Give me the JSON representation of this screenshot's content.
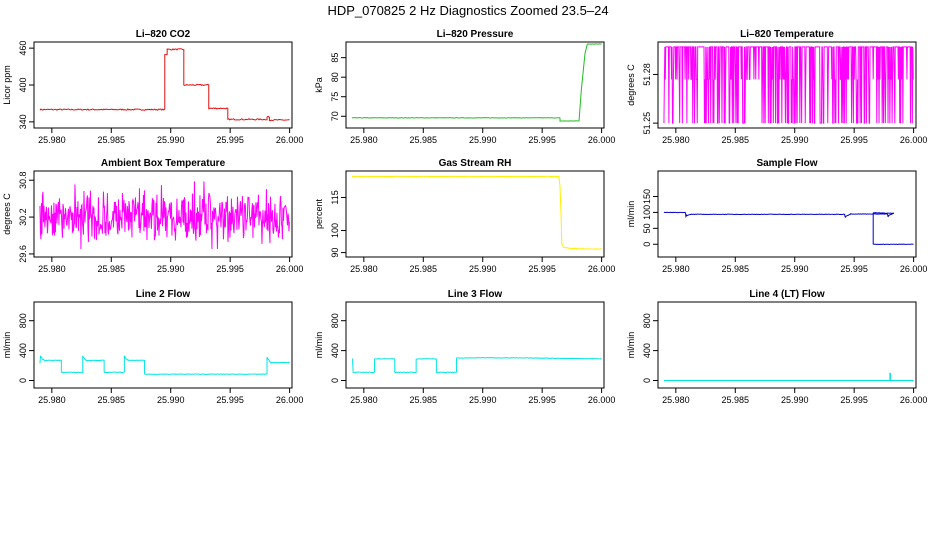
{
  "figure_title": "HDP_070825  2 Hz Diagnostics Zoomed 23.5–24",
  "chart_data": [
    {
      "type": "line",
      "title": "Li–820 CO2",
      "ylabel": "Licor ppm",
      "color": "#e01010",
      "xlim": [
        25.9785,
        26.0002
      ],
      "ylim": [
        330,
        470
      ],
      "xticks": [
        25.98,
        25.985,
        25.99,
        25.995,
        26.0
      ],
      "xtick_labels": [
        "25.980",
        "25.985",
        "25.990",
        "25.995",
        "26.000"
      ],
      "yticks": [
        340,
        400,
        460
      ],
      "ytick_labels": [
        "340",
        "400",
        "460"
      ],
      "noise": 1,
      "series": [
        {
          "name": "CO2",
          "x": [
            25.979,
            25.9895,
            25.9895,
            25.9897,
            25.9897,
            25.9911,
            25.9911,
            25.9932,
            25.9932,
            25.9948,
            25.9948,
            25.9981,
            25.9981,
            25.9983,
            25.9983,
            26.0
          ],
          "y": [
            360,
            360,
            450,
            450,
            458,
            458,
            400,
            400,
            362,
            362,
            344,
            344,
            348,
            348,
            343,
            343
          ]
        }
      ]
    },
    {
      "type": "line",
      "title": "Li–820 Pressure",
      "ylabel": "kPa",
      "color": "#22bb22",
      "xlim": [
        25.9785,
        26.0002
      ],
      "ylim": [
        67,
        89
      ],
      "xticks": [
        25.98,
        25.985,
        25.99,
        25.995,
        26.0
      ],
      "xtick_labels": [
        "25.980",
        "25.985",
        "25.990",
        "25.995",
        "26.000"
      ],
      "yticks": [
        70,
        75,
        80,
        85
      ],
      "ytick_labels": [
        "70",
        "75",
        "80",
        "85"
      ],
      "noise": 0.05,
      "series": [
        {
          "name": "Pressure",
          "x": [
            25.979,
            25.9965,
            25.9965,
            25.9981,
            25.9983,
            25.9986,
            25.9988,
            26.0
          ],
          "y": [
            69.6,
            69.6,
            68.8,
            68.8,
            77,
            86,
            88.5,
            88.5
          ]
        }
      ]
    },
    {
      "type": "line",
      "title": "Li–820 Temperature",
      "ylabel": "degrees C",
      "color": "#ff00ff",
      "xlim": [
        25.9785,
        26.0002
      ],
      "ylim": [
        51.247,
        51.3
      ],
      "xticks": [
        25.98,
        25.985,
        25.99,
        25.995,
        26.0
      ],
      "xtick_labels": [
        "25.980",
        "25.985",
        "25.990",
        "25.995",
        "26.000"
      ],
      "yticks": [
        51.25,
        51.28
      ],
      "ytick_labels": [
        "51.25",
        "51.28"
      ],
      "levels": [
        51.25,
        51.277,
        51.297
      ],
      "series": [
        {
          "name": "Temperature",
          "pattern": "quantized oscillation between 51.25 and 51.297",
          "x_range": [
            25.979,
            26.0
          ]
        }
      ]
    },
    {
      "type": "line",
      "title": "Ambient Box Temperature",
      "ylabel": "degrees C",
      "color": "#ff00ff",
      "xlim": [
        25.9785,
        26.0002
      ],
      "ylim": [
        29.55,
        30.95
      ],
      "xticks": [
        25.98,
        25.985,
        25.99,
        25.995,
        26.0
      ],
      "xtick_labels": [
        "25.980",
        "25.985",
        "25.990",
        "25.995",
        "26.000"
      ],
      "yticks": [
        29.6,
        30.2,
        30.8
      ],
      "ytick_labels": [
        "29.6",
        "30.2",
        "30.8"
      ],
      "series": [
        {
          "name": "Ambient",
          "pattern": "noise around 30.2 spanning 29.7 to 30.75",
          "mean": 30.2,
          "x_range": [
            25.979,
            26.0
          ]
        }
      ]
    },
    {
      "type": "line",
      "title": "Gas Stream RH",
      "ylabel": "percent",
      "color": "#ffee00",
      "xlim": [
        25.9785,
        26.0002
      ],
      "ylim": [
        88,
        127
      ],
      "xticks": [
        25.98,
        25.985,
        25.99,
        25.995,
        26.0
      ],
      "xtick_labels": [
        "25.980",
        "25.985",
        "25.990",
        "25.995",
        "26.000"
      ],
      "yticks": [
        90,
        100,
        115
      ],
      "ytick_labels": [
        "90",
        "100",
        "115"
      ],
      "noise": 0.1,
      "series": [
        {
          "name": "RH",
          "x": [
            25.979,
            25.9964,
            25.9965,
            25.9966,
            25.99665,
            25.9968,
            25.997,
            25.9975,
            25.9985,
            26.0
          ],
          "y": [
            124.5,
            124.5,
            120,
            105,
            94,
            92.5,
            92.2,
            91.9,
            91.7,
            91.6
          ]
        }
      ]
    },
    {
      "type": "line",
      "title": "Sample Flow",
      "ylabel": "ml/min",
      "color": "#0000cc",
      "xlim": [
        25.9785,
        26.0002
      ],
      "ylim": [
        -40,
        230
      ],
      "xticks": [
        25.98,
        25.985,
        25.99,
        25.995,
        26.0
      ],
      "xtick_labels": [
        "25.980",
        "25.985",
        "25.990",
        "25.995",
        "26.000"
      ],
      "yticks": [
        0,
        50,
        100,
        150
      ],
      "ytick_labels": [
        "0",
        "50",
        "100",
        "150"
      ],
      "noise": 0.6,
      "series": [
        {
          "name": "Sample",
          "x": [
            25.979,
            25.9808,
            25.98085,
            25.9809,
            25.9813,
            25.9942,
            25.99425,
            25.9943,
            25.9947,
            25.9978,
            25.99785,
            25.9979,
            25.9983,
            25.9966,
            25.9966,
            26.0
          ],
          "y": [
            100,
            100,
            88,
            90,
            94,
            94,
            84,
            88,
            95,
            95,
            86,
            90,
            97,
            99,
            0,
            0
          ]
        }
      ]
    },
    {
      "type": "line",
      "title": "Line 2 Flow",
      "ylabel": "ml/min",
      "color": "#00e5e5",
      "xlim": [
        25.9785,
        26.0002
      ],
      "ylim": [
        -100,
        1050
      ],
      "xticks": [
        25.98,
        25.985,
        25.99,
        25.995,
        26.0
      ],
      "xtick_labels": [
        "25.980",
        "25.985",
        "25.990",
        "25.995",
        "26.000"
      ],
      "yticks": [
        0,
        400,
        800
      ],
      "ytick_labels": [
        "0",
        "400",
        "800"
      ],
      "noise": 3,
      "series": [
        {
          "name": "Line2",
          "x": [
            25.979,
            25.97905,
            25.9792,
            25.9794,
            25.9808,
            25.9808,
            25.9826,
            25.9826,
            25.98275,
            25.9829,
            25.9844,
            25.9844,
            25.9861,
            25.9861,
            25.98625,
            25.9864,
            25.9878,
            25.9878,
            25.9981,
            25.9981,
            25.99825,
            25.9984,
            26.0
          ],
          "y": [
            230,
            330,
            290,
            270,
            270,
            110,
            110,
            330,
            290,
            270,
            270,
            110,
            110,
            330,
            290,
            270,
            270,
            85,
            85,
            310,
            275,
            240,
            240
          ]
        }
      ]
    },
    {
      "type": "line",
      "title": "Line 3 Flow",
      "ylabel": "ml/min",
      "color": "#00e5e5",
      "xlim": [
        25.9785,
        26.0002
      ],
      "ylim": [
        -100,
        1050
      ],
      "xticks": [
        25.98,
        25.985,
        25.99,
        25.995,
        26.0
      ],
      "xtick_labels": [
        "25.980",
        "25.985",
        "25.990",
        "25.995",
        "26.000"
      ],
      "yticks": [
        0,
        400,
        800
      ],
      "ytick_labels": [
        "0",
        "400",
        "800"
      ],
      "noise": 3,
      "series": [
        {
          "name": "Line3",
          "x": [
            25.979,
            25.97905,
            25.9791,
            25.9809,
            25.9809,
            25.9826,
            25.9826,
            25.9844,
            25.9844,
            25.9861,
            25.9861,
            25.9878,
            25.9878,
            25.99,
            25.995,
            26.0
          ],
          "y": [
            290,
            290,
            110,
            110,
            290,
            290,
            110,
            110,
            290,
            290,
            110,
            110,
            300,
            305,
            300,
            290
          ]
        }
      ]
    },
    {
      "type": "line",
      "title": "Line 4 (LT) Flow",
      "ylabel": "ml/min",
      "color": "#00e5e5",
      "xlim": [
        25.9785,
        26.0002
      ],
      "ylim": [
        -100,
        1050
      ],
      "xticks": [
        25.98,
        25.985,
        25.99,
        25.995,
        26.0
      ],
      "xtick_labels": [
        "25.980",
        "25.985",
        "25.990",
        "25.995",
        "26.000"
      ],
      "yticks": [
        0,
        400,
        800
      ],
      "ytick_labels": [
        "0",
        "400",
        "800"
      ],
      "noise": 0,
      "series": [
        {
          "name": "Line4",
          "x": [
            25.979,
            25.998,
            25.998,
            25.99805,
            25.99805,
            26.0
          ],
          "y": [
            0,
            0,
            95,
            95,
            0,
            0
          ]
        }
      ]
    }
  ]
}
